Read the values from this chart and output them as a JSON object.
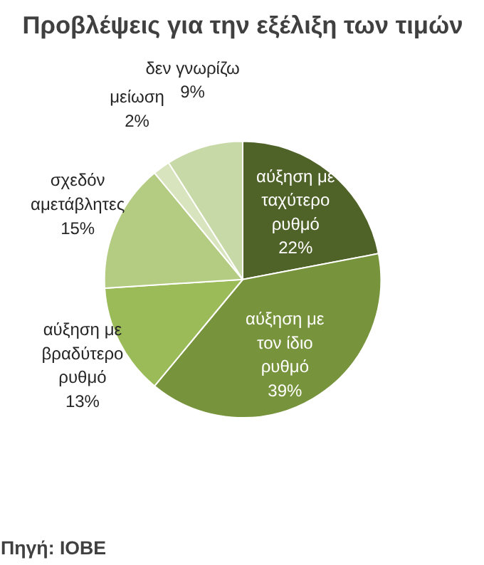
{
  "chart_data": {
    "type": "pie",
    "title": "Προβλέψεις για την εξέλιξη των τιμών",
    "categories": [
      "αύξηση με ταχύτερο ρυθμό",
      "αύξηση με τον ίδιο ρυθμό",
      "αύξηση με βραδύτερο ρυθμό",
      "σχεδόν αμετάβλητες",
      "μείωση",
      "δεν γνωρίζω"
    ],
    "values": [
      22,
      39,
      13,
      15,
      2,
      9
    ],
    "value_labels": [
      "22%",
      "39%",
      "13%",
      "15%",
      "2%",
      "9%"
    ],
    "colors": [
      "#4f6228",
      "#77933c",
      "#9bbb59",
      "#b3cc82",
      "#d7e4bd",
      "#c8d9a8"
    ],
    "annotations": [
      "Πηγή: ΙΟΒΕ"
    ]
  }
}
